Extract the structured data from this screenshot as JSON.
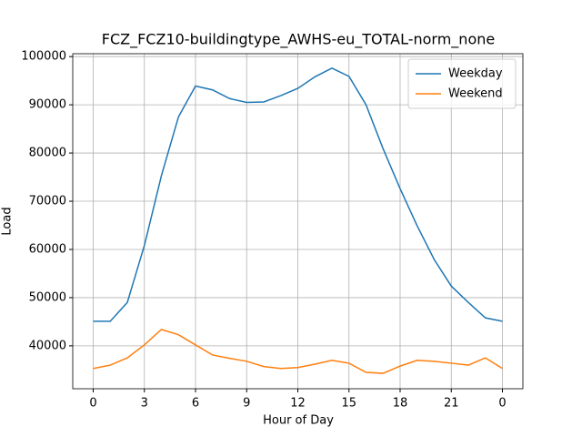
{
  "chart_data": {
    "type": "line",
    "title": "FCZ_FCZ10-buildingtype_AWHS-eu_TOTAL-norm_none",
    "x_label": "Hour of Day",
    "y_label": "Load",
    "x": [
      0,
      1,
      2,
      3,
      4,
      5,
      6,
      7,
      8,
      9,
      10,
      11,
      12,
      13,
      14,
      15,
      16,
      17,
      18,
      19,
      20,
      21,
      22,
      23,
      24
    ],
    "series": [
      {
        "name": "Weekday",
        "color": "#1f77b4",
        "values": [
          45100,
          45100,
          49000,
          60800,
          75300,
          87500,
          93900,
          93100,
          91300,
          90500,
          90600,
          91900,
          93400,
          95800,
          97600,
          95900,
          90000,
          80900,
          72600,
          64900,
          57900,
          52400,
          49000,
          45800,
          45100
        ]
      },
      {
        "name": "Weekend",
        "color": "#ff7f0e",
        "values": [
          35300,
          36000,
          37500,
          40200,
          43400,
          42300,
          40200,
          38100,
          37400,
          36800,
          35700,
          35300,
          35500,
          36200,
          37000,
          36400,
          34500,
          34300,
          35800,
          37000,
          36800,
          36400,
          36000,
          37500,
          35300
        ]
      }
    ],
    "xlim": [
      -1.2,
      25.2
    ],
    "ylim": [
      31100,
      100600
    ],
    "xticks": [
      0,
      3,
      6,
      9,
      12,
      15,
      18,
      21,
      {
        "value": 24,
        "label": "0"
      }
    ],
    "yticks": [
      40000,
      50000,
      60000,
      70000,
      80000,
      90000,
      100000
    ],
    "grid": true,
    "legend": "upper right"
  }
}
